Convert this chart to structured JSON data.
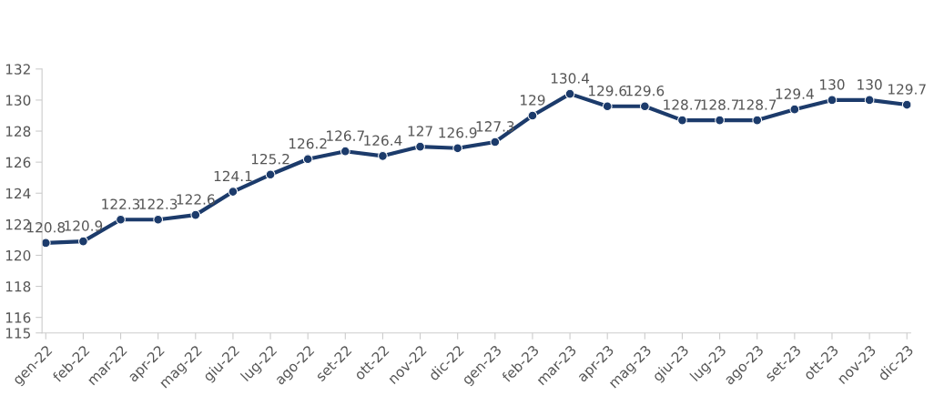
{
  "chart_data": {
    "type": "line",
    "categories": [
      "gen-22",
      "feb-22",
      "mar-22",
      "apr-22",
      "mag-22",
      "giu-22",
      "lug-22",
      "ago-22",
      "set-22",
      "ott-22",
      "nov-22",
      "dic-22",
      "gen-23",
      "feb-23",
      "mar-23",
      "apr-23",
      "mag-23",
      "giu-23",
      "lug-23",
      "ago-23",
      "set-23",
      "ott-23",
      "nov-23",
      "dic-23"
    ],
    "series": [
      {
        "color": "#1c3b6b",
        "values": [
          120.8,
          120.9,
          122.3,
          122.3,
          122.6,
          124.1,
          125.2,
          126.2,
          126.7,
          126.4,
          127,
          126.9,
          127.3,
          129,
          130.4,
          129.6,
          129.6,
          128.7,
          128.7,
          128.7,
          129.4,
          130,
          130,
          129.7
        ]
      }
    ],
    "ylim": [
      115,
      132
    ],
    "yticks": [
      115,
      116,
      118,
      120,
      122,
      124,
      126,
      128,
      130,
      132
    ],
    "data_labels": true,
    "marker": "circle",
    "line_style": "solid",
    "grid": false
  }
}
